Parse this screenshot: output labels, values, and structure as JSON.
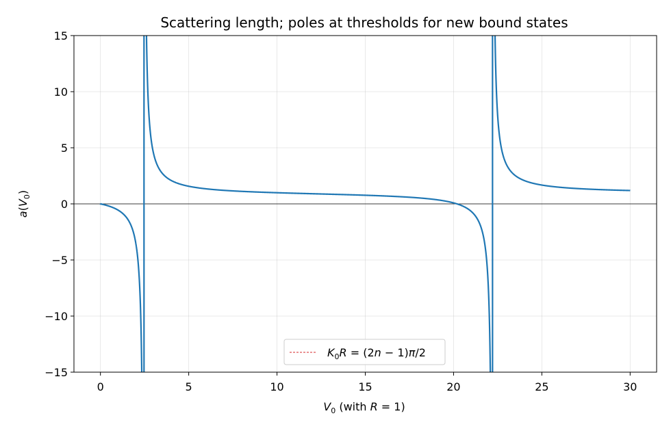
{
  "chart_data": {
    "type": "line",
    "title": "Scattering length; poles at thresholds for new bound states",
    "xlabel": {
      "base": "V",
      "sub": "0",
      "rest": "  (with ",
      "it": "R",
      "tail": " = 1)"
    },
    "ylabel": {
      "a": "a",
      "open": "(",
      "base": "V",
      "sub": "0",
      "close": ")"
    },
    "xlim": [
      -1.5,
      31.5
    ],
    "ylim": [
      -15,
      15
    ],
    "xticks": [
      0,
      5,
      10,
      15,
      20,
      25,
      30
    ],
    "yticks": [
      -15,
      -10,
      -5,
      0,
      5,
      10,
      15
    ],
    "ytick_labels": [
      "−15",
      "−10",
      "−5",
      "0",
      "5",
      "10",
      "15"
    ],
    "xtick_labels": [
      "0",
      "5",
      "10",
      "15",
      "20",
      "25",
      "30"
    ],
    "grid": true,
    "zero_line": 0,
    "formula": "a(V0) = 1 - tan(sqrt(V0))/sqrt(V0)",
    "x_range": [
      0,
      30
    ],
    "poles": [
      2.467,
      22.207
    ],
    "series": [
      {
        "color": "#1f77b4"
      }
    ],
    "pole_line_color": "#d62728",
    "legend": {
      "position": "lower-center",
      "entry": {
        "k": "K",
        "sub": "0",
        "r": "R",
        "eq": " = (2",
        "n": "n",
        "tail": " − 1)",
        "pi": "π",
        "end": "/2"
      }
    }
  }
}
